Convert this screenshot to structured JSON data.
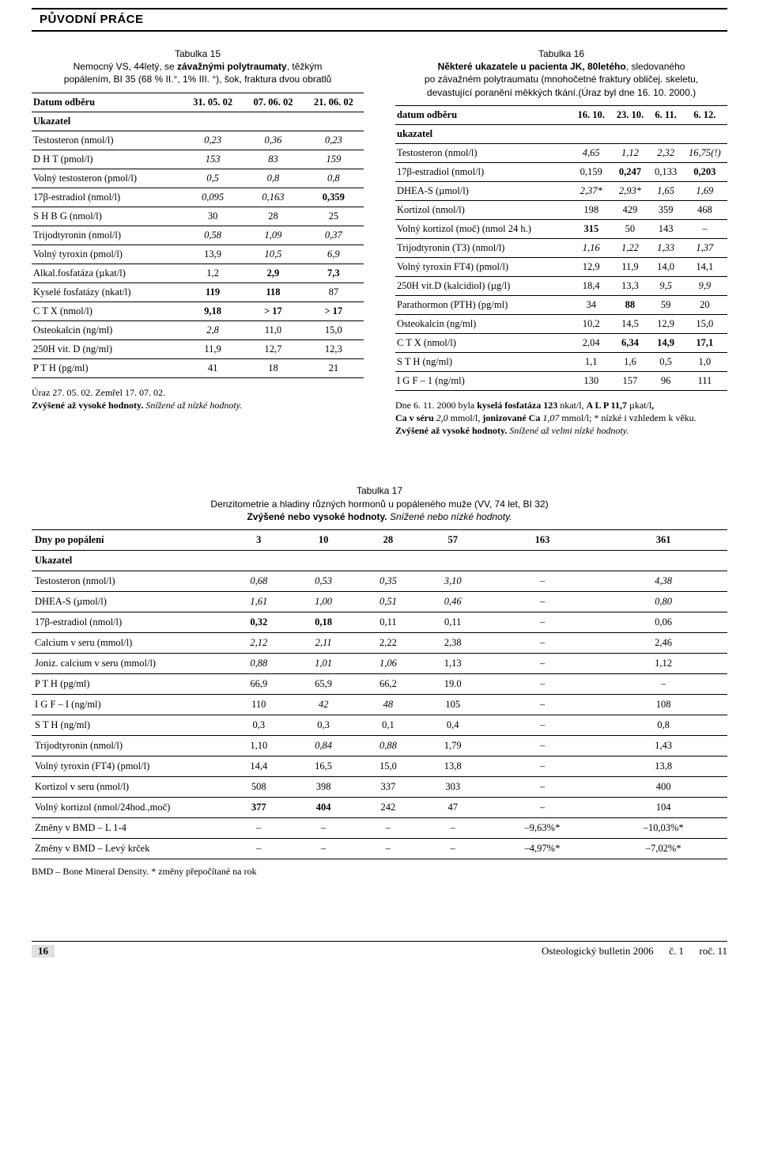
{
  "header": {
    "section_label": "PŮVODNÍ PRÁCE"
  },
  "table15": {
    "num": "Tabulka 15",
    "title_line1_a": "Nemocný VS, 44letý, se ",
    "title_line1_b": "závažnými polytraumaty",
    "title_line1_c": ", těžkým",
    "title_line2": "popálením, BI 35 (68 % II.°, 1% III. °), šok, fraktura dvou obratlů",
    "header_row": [
      "Datum odběru",
      "31. 05. 02",
      "07. 06. 02",
      "21. 06. 02"
    ],
    "ukazatel": "Ukazatel",
    "rows": [
      {
        "l": "Testosteron (nmol/l)",
        "v": [
          "0,23",
          "0,36",
          "0,23"
        ],
        "s": [
          "i",
          "i",
          "i"
        ]
      },
      {
        "l": "D H T (pmol/l)",
        "v": [
          "153",
          "83",
          "159"
        ],
        "s": [
          "i",
          "i",
          "i"
        ]
      },
      {
        "l": "Volný testosteron (pmol/l)",
        "v": [
          "0,5",
          "0,8",
          "0,8"
        ],
        "s": [
          "i",
          "i",
          "i"
        ]
      },
      {
        "l": "17β-estradiol (nmol/l)",
        "v": [
          "0,095",
          "0,163",
          "0,359"
        ],
        "s": [
          "i",
          "i",
          "b"
        ]
      },
      {
        "l": "S H B G (nmol/l)",
        "v": [
          "30",
          "28",
          "25"
        ],
        "s": [
          "",
          "",
          ""
        ]
      },
      {
        "l": "Trijodtyronin (nmol/l)",
        "v": [
          "0,58",
          "1,09",
          "0,37"
        ],
        "s": [
          "i",
          "i",
          "i"
        ]
      },
      {
        "l": "Volný tyroxin (pmol/l)",
        "v": [
          "13,9",
          "10,5",
          "6,9"
        ],
        "s": [
          "",
          "i",
          "i"
        ]
      },
      {
        "l": "Alkal.fosfatáza (µkat/l)",
        "v": [
          "1,2",
          "2,9",
          "7,3"
        ],
        "s": [
          "",
          "b",
          "b"
        ]
      },
      {
        "l": "Kyselé fosfatázy (nkat/l)",
        "v": [
          "119",
          "118",
          "87"
        ],
        "s": [
          "b",
          "b",
          ""
        ]
      },
      {
        "l": "C T X (nmol/l)",
        "v": [
          "9,18",
          "> 17",
          "> 17"
        ],
        "s": [
          "b",
          "b",
          "b"
        ]
      },
      {
        "l": "Osteokalcin (ng/ml)",
        "v": [
          "2,8",
          "11,0",
          "15,0"
        ],
        "s": [
          "i",
          "",
          ""
        ]
      },
      {
        "l": "250H vit. D (ng/ml)",
        "v": [
          "11,9",
          "12,7",
          "12,3"
        ],
        "s": [
          "",
          "",
          ""
        ]
      },
      {
        "l": "P T H (pg/ml)",
        "v": [
          "41",
          "18",
          "21"
        ],
        "s": [
          "",
          "",
          ""
        ]
      }
    ],
    "caption_a": "Úraz  27. 05. 02. Zemřel 17. 07. 02.",
    "caption_b": "Zvýšené až vysoké hodnoty.",
    "caption_c": " Snížené až nízké hodnoty."
  },
  "table16": {
    "num": "Tabulka 16",
    "title1a": "Některé ukazatele u pacienta JK, 80letého",
    "title1b": ", sledovaného",
    "title2": "po závažném polytraumatu (mnohočetné fraktury obličej. skeletu,",
    "title3": "devastující poranění měkkých tkání.(Úraz byl dne 16. 10. 2000.)",
    "header_row": [
      "datum odběru",
      "16. 10.",
      "23. 10.",
      "6. 11.",
      "6. 12."
    ],
    "ukazatel": "ukazatel",
    "rows": [
      {
        "l": "Testosteron (nmol/l)",
        "v": [
          "4,65",
          "1,12",
          "2,32",
          "16,75(!)"
        ],
        "s": [
          "i",
          "i",
          "i",
          "i"
        ]
      },
      {
        "l": "17β-estradiol (nmol/l)",
        "v": [
          "0,159",
          "0,247",
          "0,133",
          "0,203"
        ],
        "s": [
          "",
          "b",
          "",
          "b"
        ]
      },
      {
        "l": "DHEA-S (µmol/l)",
        "v": [
          "2,37*",
          "2,93*",
          "1,65",
          "1,69"
        ],
        "s": [
          "i",
          "i",
          "i",
          "i"
        ]
      },
      {
        "l": "Kortizol (nmol/l)",
        "v": [
          "198",
          "429",
          "359",
          "468"
        ],
        "s": [
          "",
          "",
          "",
          ""
        ]
      },
      {
        "l": "Volný kortizol (moč) (nmol 24 h.)",
        "v": [
          "315",
          "50",
          "143",
          "–"
        ],
        "s": [
          "b",
          "",
          "",
          ""
        ]
      },
      {
        "l": "Trijodtyronin (T3) (nmol/l)",
        "v": [
          "1,16",
          "1,22",
          "1,33",
          "1,37"
        ],
        "s": [
          "i",
          "i",
          "i",
          "i"
        ]
      },
      {
        "l": "Volný tyroxin FT4) (pmol/l)",
        "v": [
          "12,9",
          "11,9",
          "14,0",
          "14,1"
        ],
        "s": [
          "",
          "",
          "",
          ""
        ]
      },
      {
        "l": "250H vit.D (kalcidiol) (µg/l)",
        "v": [
          "18,4",
          "13,3",
          "9,5",
          "9,9"
        ],
        "s": [
          "",
          "",
          "i",
          "i"
        ]
      },
      {
        "l": "Parathormon (PTH) (pg/ml)",
        "v": [
          "34",
          "88",
          "59",
          "20"
        ],
        "s": [
          "",
          "b",
          "",
          ""
        ]
      },
      {
        "l": "Osteokalcin (ng/ml)",
        "v": [
          "10,2",
          "14,5",
          "12,9",
          "15,0"
        ],
        "s": [
          "",
          "",
          "",
          ""
        ]
      },
      {
        "l": "C T X (nmol/l)",
        "v": [
          "2,04",
          "6,34",
          "14,9",
          "17,1"
        ],
        "s": [
          "",
          "b",
          "b",
          "b"
        ]
      },
      {
        "l": "S T H (ng/ml)",
        "v": [
          "1,1",
          "1,6",
          "0,5",
          "1,0"
        ],
        "s": [
          "",
          "",
          "",
          ""
        ]
      },
      {
        "l": "I G F – 1 (ng/ml)",
        "v": [
          "130",
          "157",
          "96",
          "111"
        ],
        "s": [
          "",
          "",
          "",
          ""
        ]
      }
    ],
    "caption_a": "Dne 6. 11. 2000 byla ",
    "caption_b": "kyselá fosfatáza 123",
    "caption_c": " nkat/l, ",
    "caption_d": "A L P 11,7",
    "caption_e": " µkat/l",
    "caption_f": ",",
    "caption_g": "Ca v séru ",
    "caption_h": "2,0",
    "caption_i": " mmol/l, ",
    "caption_j": "jonizované Ca ",
    "caption_k": "1,07",
    "caption_l": " mmol/l; * nízké i vzhledem k věku. ",
    "caption_m": "Zvýšené až vysoké hodnoty.",
    "caption_n": " Snížené až velmi nízké hodnoty."
  },
  "table17": {
    "num": "Tabulka 17",
    "title1": "Denzitometrie a hladiny různých hormonů u popáleného muže (VV, 74 let, BI 32)",
    "title2a": "Zvýšené nebo vysoké hodnoty.",
    "title2b": " Snížené nebo nízké hodnoty.",
    "header_row": [
      "Dny po popálení",
      "3",
      "10",
      "28",
      "57",
      "163",
      "361"
    ],
    "ukazatel": "Ukazatel",
    "rows": [
      {
        "l": "Testosteron (nmol/l)",
        "v": [
          "0,68",
          "0,53",
          "0,35",
          "3,10",
          "–",
          "4,38"
        ],
        "s": [
          "i",
          "i",
          "i",
          "i",
          "",
          "i"
        ]
      },
      {
        "l": "DHEA-S (µmol/l)",
        "v": [
          "1,61",
          "1,00",
          "0,51",
          "0,46",
          "–",
          "0,80"
        ],
        "s": [
          "i",
          "i",
          "i",
          "i",
          "",
          "i"
        ]
      },
      {
        "l": "17β-estradiol (nmol/l)",
        "v": [
          "0,32",
          "0,18",
          "0,11",
          "0,11",
          "–",
          "0,06"
        ],
        "s": [
          "b",
          "b",
          "",
          "",
          "",
          ""
        ]
      },
      {
        "l": "Calcium v seru (mmol/l)",
        "v": [
          "2,12",
          "2,11",
          "2,22",
          "2,38",
          "–",
          "2,46"
        ],
        "s": [
          "i",
          "i",
          "",
          "",
          "",
          ""
        ]
      },
      {
        "l": "Joniz. calcium v seru (mmol/l)",
        "v": [
          "0,88",
          "1,01",
          "1,06",
          "1,13",
          "–",
          "1,12"
        ],
        "s": [
          "i",
          "i",
          "i",
          "",
          "",
          ""
        ]
      },
      {
        "l": "P T H (pg/ml)",
        "v": [
          "66,9",
          "65,9",
          "66,2",
          "19.0",
          "–",
          "–"
        ],
        "s": [
          "",
          "",
          "",
          "",
          "",
          ""
        ]
      },
      {
        "l": "I G F – I (ng/ml)",
        "v": [
          "110",
          "42",
          "48",
          "105",
          "–",
          "108"
        ],
        "s": [
          "",
          "i",
          "i",
          "",
          "",
          ""
        ]
      },
      {
        "l": "S T H (ng/ml)",
        "v": [
          "0,3",
          "0,3",
          "0,1",
          "0,4",
          "–",
          "0,8"
        ],
        "s": [
          "",
          "",
          "",
          "",
          "",
          ""
        ]
      },
      {
        "l": "Trijodtyronin (nmol/l)",
        "v": [
          "1,10",
          "0,84",
          "0,88",
          "1,79",
          "–",
          "1,43"
        ],
        "s": [
          "",
          "i",
          "i",
          "",
          "",
          ""
        ]
      },
      {
        "l": "Volný tyroxin (FT4) (pmol/l)",
        "v": [
          "14,4",
          "16,5",
          "15,0",
          "13,8",
          "–",
          "13,8"
        ],
        "s": [
          "",
          "",
          "",
          "",
          "",
          ""
        ]
      },
      {
        "l": "Kortizol v seru (nmol/l)",
        "v": [
          "508",
          "398",
          "337",
          "303",
          "–",
          "400"
        ],
        "s": [
          "",
          "",
          "",
          "",
          "",
          ""
        ]
      },
      {
        "l": "Volný kortizol (nmol/24hod.,moč)",
        "v": [
          "377",
          "404",
          "242",
          "47",
          "–",
          "104"
        ],
        "s": [
          "b",
          "b",
          "",
          "",
          "",
          ""
        ]
      },
      {
        "l": "Změny v BMD – L 1-4",
        "v": [
          "–",
          "–",
          "–",
          "–",
          "–9,63%*",
          "–10,03%*"
        ],
        "s": [
          "",
          "",
          "",
          "",
          "",
          ""
        ]
      },
      {
        "l": "Změny v BMD – Levý krček",
        "v": [
          "–",
          "–",
          "–",
          "–",
          "–4,97%*",
          "–7,02%*"
        ],
        "s": [
          "",
          "",
          "",
          "",
          "",
          ""
        ]
      }
    ],
    "note": "BMD – Bone Mineral Density. * změny přepočítané na rok"
  },
  "footer": {
    "page": "16",
    "journal": "Osteologický bulletin 2006",
    "issue": "č. 1",
    "volume": "roč. 11"
  }
}
